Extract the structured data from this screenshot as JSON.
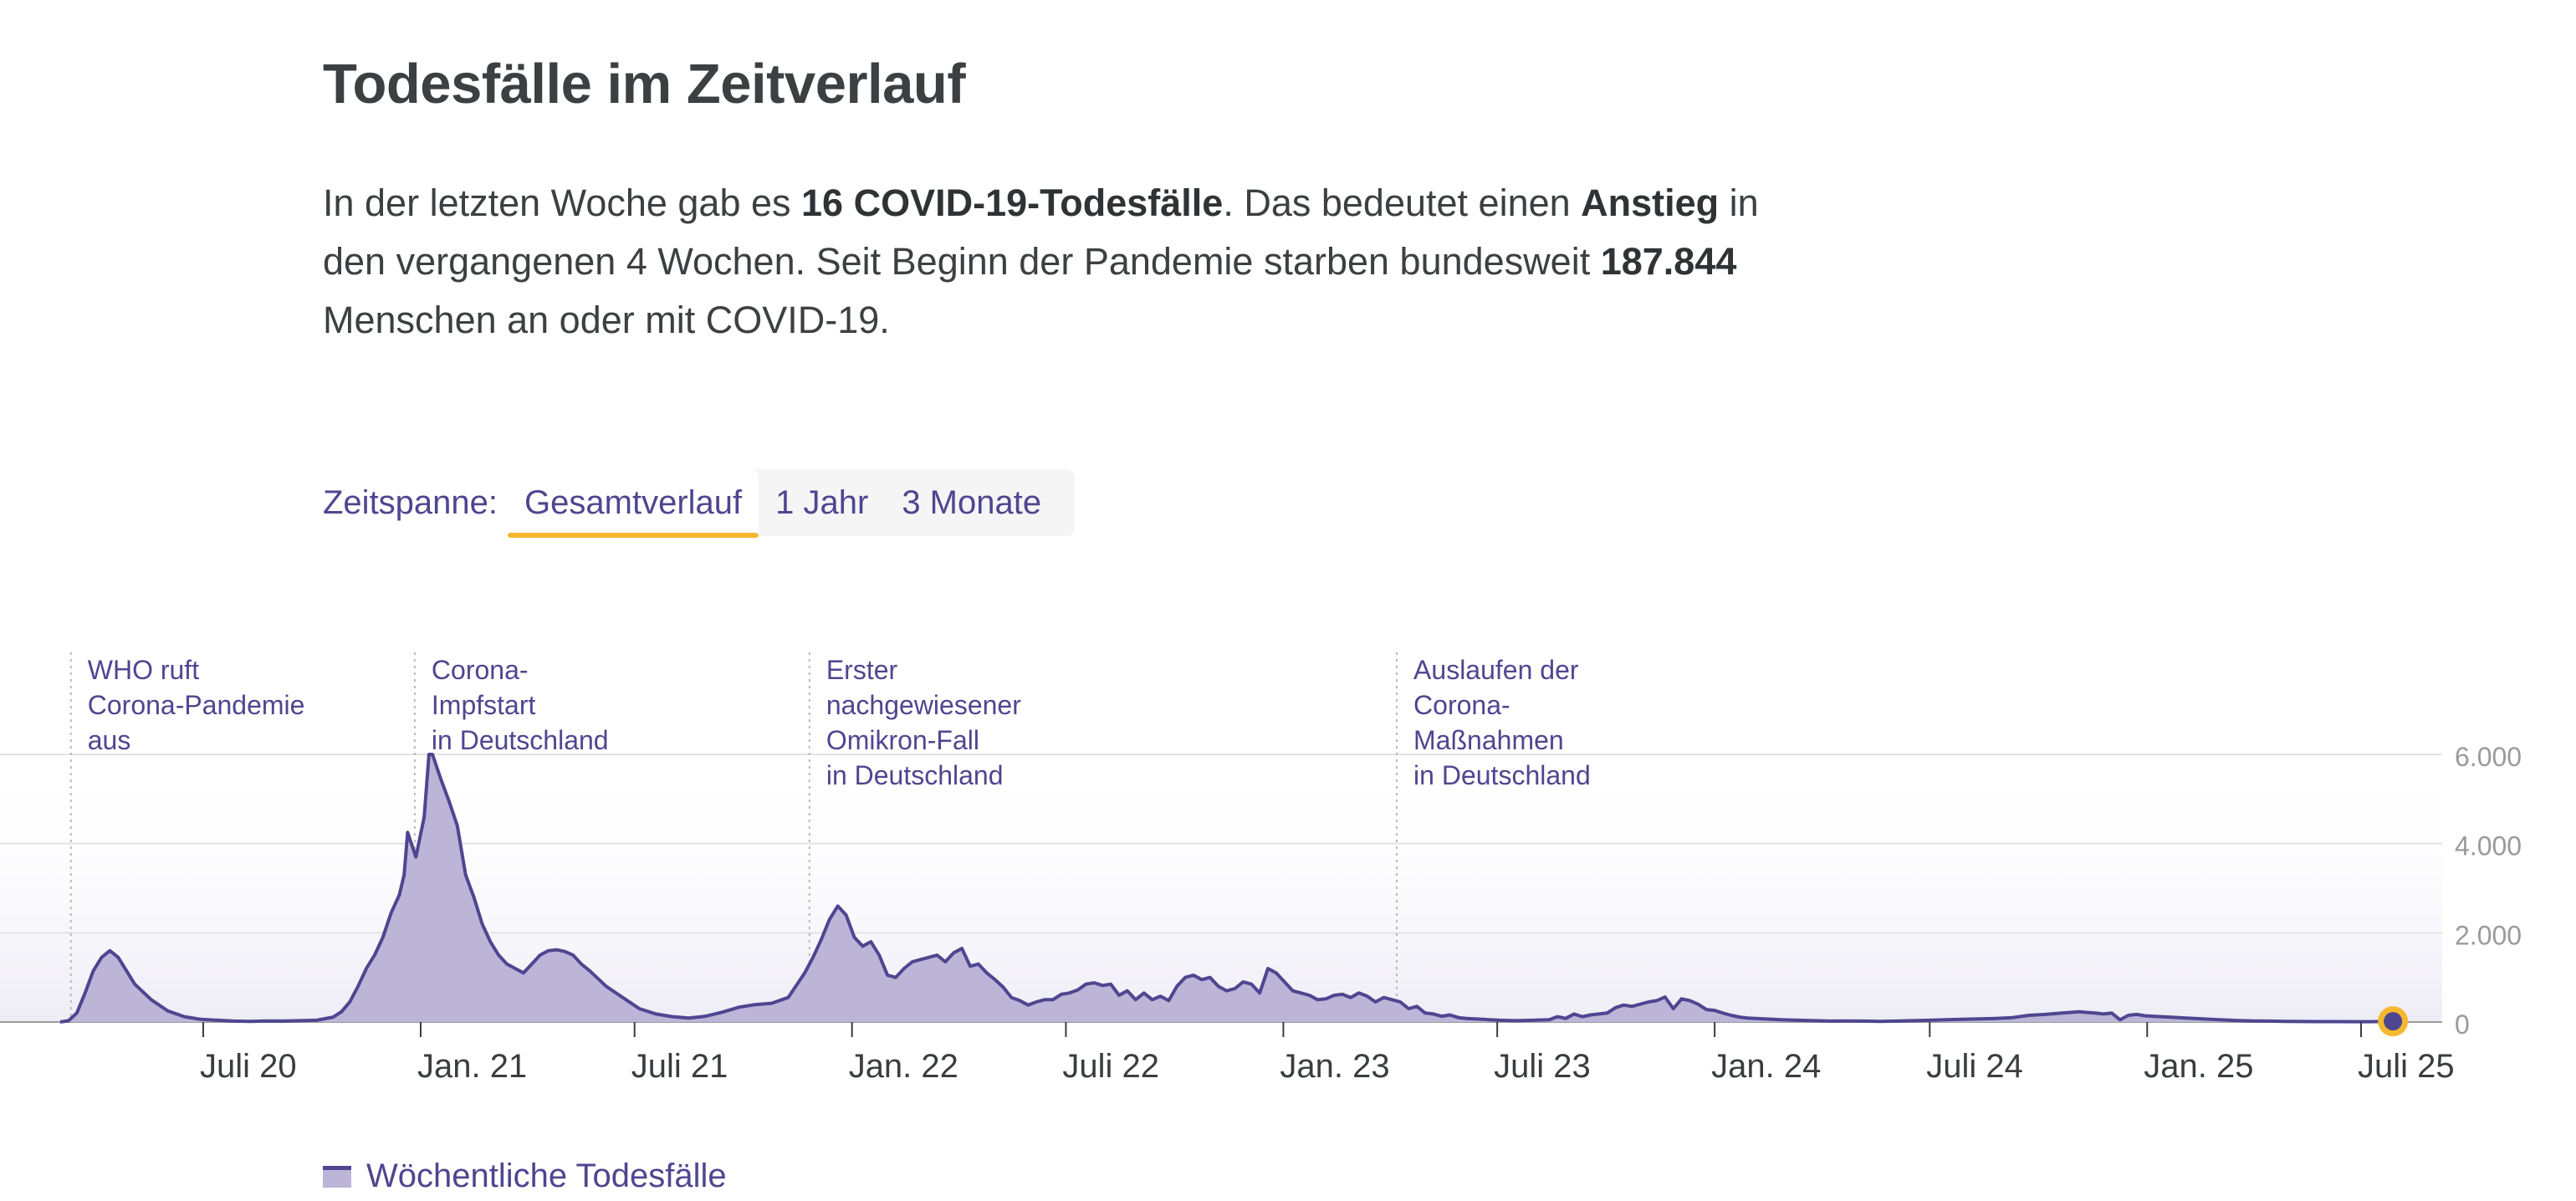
{
  "heading": {
    "title": "Todesfälle im Zeitverlauf",
    "intro_part1": "In der letzten Woche gab es ",
    "intro_bold1": "16 COVID-19-Todesfälle",
    "intro_part2": ". Das bedeutet einen ",
    "intro_bold2": "Anstieg",
    "intro_part3": " in den vergangenen 4 Wochen. Seit Beginn der Pandemie starben bundesweit ",
    "intro_bold3": "187.844",
    "intro_part4": " Menschen an oder mit COVID-19."
  },
  "zeitspanne": {
    "label": "Zeitspanne:",
    "options": [
      "Gesamtverlauf",
      "1 Jahr",
      "3 Monate"
    ],
    "selected": "Gesamtverlauf"
  },
  "legend": {
    "label": "Wöchentliche Todesfälle"
  },
  "colors": {
    "line": "#4e4690",
    "area": "#bcb5d8",
    "accent": "#f5b82e",
    "annotation_text": "#4e4690",
    "axis_text": "#3a3d3f",
    "tick_text": "#9a9a9a"
  },
  "chart_data": {
    "type": "area",
    "x_unit": "Kalenderwoche",
    "ylim": [
      0,
      6000
    ],
    "y_ticks": [
      0,
      2000,
      4000,
      6000
    ],
    "y_tick_labels": [
      "0",
      "2.000",
      "4.000",
      "6.000"
    ],
    "y_axis_position": "right",
    "grid": true,
    "x_ticks": [
      {
        "date": "2020-07-01",
        "label": "Juli 20"
      },
      {
        "date": "2021-01-01",
        "label": "Jan. 21"
      },
      {
        "date": "2021-07-01",
        "label": "Juli 21"
      },
      {
        "date": "2022-01-01",
        "label": "Jan. 22"
      },
      {
        "date": "2022-07-01",
        "label": "Juli 22"
      },
      {
        "date": "2023-01-01",
        "label": "Jan. 23"
      },
      {
        "date": "2023-07-01",
        "label": "Juli 23"
      },
      {
        "date": "2024-01-01",
        "label": "Jan. 24"
      },
      {
        "date": "2024-07-01",
        "label": "Juli 24"
      },
      {
        "date": "2025-01-01",
        "label": "Jan. 25"
      },
      {
        "date": "2025-07-01",
        "label": "Juli 25"
      }
    ],
    "annotations": [
      {
        "date": "2020-03-11",
        "text": [
          "WHO ruft",
          "Corona-Pandemie",
          "aus"
        ]
      },
      {
        "date": "2020-12-27",
        "text": [
          "Corona-",
          "Impfstart",
          "in Deutschland"
        ]
      },
      {
        "date": "2021-11-26",
        "text": [
          "Erster",
          "nachgewiesener",
          "Omikron-Fall",
          "in Deutschland"
        ]
      },
      {
        "date": "2023-04-07",
        "text": [
          "Auslaufen der",
          "Corona-",
          "Maßnahmen",
          "in Deutschland"
        ]
      }
    ],
    "last_point": {
      "date": "2025-07-28",
      "value": 16
    },
    "series": [
      {
        "name": "Wöchentliche Todesfälle",
        "points": [
          [
            "2020-03-02",
            0
          ],
          [
            "2020-03-09",
            30
          ],
          [
            "2020-03-16",
            200
          ],
          [
            "2020-03-23",
            650
          ],
          [
            "2020-03-30",
            1150
          ],
          [
            "2020-04-06",
            1450
          ],
          [
            "2020-04-13",
            1600
          ],
          [
            "2020-04-20",
            1450
          ],
          [
            "2020-04-27",
            1150
          ],
          [
            "2020-05-04",
            850
          ],
          [
            "2020-05-18",
            500
          ],
          [
            "2020-06-01",
            250
          ],
          [
            "2020-06-15",
            120
          ],
          [
            "2020-06-29",
            60
          ],
          [
            "2020-07-13",
            40
          ],
          [
            "2020-07-27",
            20
          ],
          [
            "2020-08-10",
            15
          ],
          [
            "2020-08-24",
            25
          ],
          [
            "2020-09-07",
            20
          ],
          [
            "2020-09-21",
            30
          ],
          [
            "2020-10-05",
            40
          ],
          [
            "2020-10-19",
            110
          ],
          [
            "2020-10-26",
            230
          ],
          [
            "2020-11-02",
            450
          ],
          [
            "2020-11-09",
            800
          ],
          [
            "2020-11-16",
            1200
          ],
          [
            "2020-11-23",
            1500
          ],
          [
            "2020-11-30",
            1900
          ],
          [
            "2020-12-07",
            2450
          ],
          [
            "2020-12-14",
            2850
          ],
          [
            "2020-12-18",
            3300
          ],
          [
            "2020-12-21",
            4250
          ],
          [
            "2020-12-28",
            3700
          ],
          [
            "2021-01-04",
            4600
          ],
          [
            "2021-01-08",
            6000
          ],
          [
            "2021-01-11",
            6000
          ],
          [
            "2021-01-18",
            5450
          ],
          [
            "2021-01-25",
            4950
          ],
          [
            "2021-02-01",
            4400
          ],
          [
            "2021-02-08",
            3300
          ],
          [
            "2021-02-15",
            2800
          ],
          [
            "2021-02-22",
            2200
          ],
          [
            "2021-03-01",
            1800
          ],
          [
            "2021-03-08",
            1500
          ],
          [
            "2021-03-15",
            1300
          ],
          [
            "2021-03-22",
            1200
          ],
          [
            "2021-03-29",
            1100
          ],
          [
            "2021-04-05",
            1300
          ],
          [
            "2021-04-12",
            1500
          ],
          [
            "2021-04-19",
            1600
          ],
          [
            "2021-04-26",
            1620
          ],
          [
            "2021-05-03",
            1580
          ],
          [
            "2021-05-10",
            1500
          ],
          [
            "2021-05-17",
            1300
          ],
          [
            "2021-05-24",
            1150
          ],
          [
            "2021-06-07",
            800
          ],
          [
            "2021-06-21",
            550
          ],
          [
            "2021-07-05",
            300
          ],
          [
            "2021-07-19",
            180
          ],
          [
            "2021-08-02",
            120
          ],
          [
            "2021-08-16",
            90
          ],
          [
            "2021-08-30",
            130
          ],
          [
            "2021-09-13",
            220
          ],
          [
            "2021-09-27",
            330
          ],
          [
            "2021-10-11",
            390
          ],
          [
            "2021-10-25",
            420
          ],
          [
            "2021-11-08",
            550
          ],
          [
            "2021-11-22",
            1100
          ],
          [
            "2021-11-29",
            1450
          ],
          [
            "2021-12-06",
            1850
          ],
          [
            "2021-12-13",
            2300
          ],
          [
            "2021-12-20",
            2600
          ],
          [
            "2021-12-27",
            2400
          ],
          [
            "2022-01-03",
            1900
          ],
          [
            "2022-01-10",
            1700
          ],
          [
            "2022-01-17",
            1800
          ],
          [
            "2022-01-24",
            1500
          ],
          [
            "2022-01-31",
            1050
          ],
          [
            "2022-02-07",
            1000
          ],
          [
            "2022-02-14",
            1200
          ],
          [
            "2022-02-21",
            1350
          ],
          [
            "2022-02-28",
            1400
          ],
          [
            "2022-03-07",
            1450
          ],
          [
            "2022-03-14",
            1500
          ],
          [
            "2022-03-21",
            1350
          ],
          [
            "2022-03-28",
            1550
          ],
          [
            "2022-04-04",
            1650
          ],
          [
            "2022-04-11",
            1250
          ],
          [
            "2022-04-18",
            1300
          ],
          [
            "2022-04-25",
            1100
          ],
          [
            "2022-05-02",
            950
          ],
          [
            "2022-05-09",
            780
          ],
          [
            "2022-05-16",
            550
          ],
          [
            "2022-05-23",
            480
          ],
          [
            "2022-05-30",
            380
          ],
          [
            "2022-06-06",
            450
          ],
          [
            "2022-06-13",
            500
          ],
          [
            "2022-06-20",
            500
          ],
          [
            "2022-06-27",
            620
          ],
          [
            "2022-07-04",
            650
          ],
          [
            "2022-07-11",
            720
          ],
          [
            "2022-07-18",
            850
          ],
          [
            "2022-07-25",
            880
          ],
          [
            "2022-08-01",
            820
          ],
          [
            "2022-08-08",
            850
          ],
          [
            "2022-08-15",
            600
          ],
          [
            "2022-08-22",
            700
          ],
          [
            "2022-08-29",
            500
          ],
          [
            "2022-09-05",
            650
          ],
          [
            "2022-09-12",
            500
          ],
          [
            "2022-09-19",
            580
          ],
          [
            "2022-09-26",
            480
          ],
          [
            "2022-10-03",
            800
          ],
          [
            "2022-10-10",
            1000
          ],
          [
            "2022-10-17",
            1050
          ],
          [
            "2022-10-24",
            950
          ],
          [
            "2022-10-31",
            1000
          ],
          [
            "2022-11-07",
            800
          ],
          [
            "2022-11-14",
            700
          ],
          [
            "2022-11-21",
            750
          ],
          [
            "2022-11-28",
            900
          ],
          [
            "2022-12-05",
            850
          ],
          [
            "2022-12-12",
            650
          ],
          [
            "2022-12-19",
            1200
          ],
          [
            "2022-12-26",
            1100
          ],
          [
            "2023-01-02",
            900
          ],
          [
            "2023-01-09",
            700
          ],
          [
            "2023-01-16",
            650
          ],
          [
            "2023-01-23",
            600
          ],
          [
            "2023-01-30",
            500
          ],
          [
            "2023-02-06",
            520
          ],
          [
            "2023-02-13",
            600
          ],
          [
            "2023-02-20",
            620
          ],
          [
            "2023-02-27",
            550
          ],
          [
            "2023-03-06",
            650
          ],
          [
            "2023-03-13",
            580
          ],
          [
            "2023-03-20",
            450
          ],
          [
            "2023-03-27",
            550
          ],
          [
            "2023-04-03",
            500
          ],
          [
            "2023-04-10",
            450
          ],
          [
            "2023-04-17",
            300
          ],
          [
            "2023-04-24",
            350
          ],
          [
            "2023-05-01",
            200
          ],
          [
            "2023-05-08",
            180
          ],
          [
            "2023-05-15",
            130
          ],
          [
            "2023-05-22",
            160
          ],
          [
            "2023-05-29",
            100
          ],
          [
            "2023-06-05",
            80
          ],
          [
            "2023-06-19",
            60
          ],
          [
            "2023-07-03",
            40
          ],
          [
            "2023-07-17",
            30
          ],
          [
            "2023-07-31",
            40
          ],
          [
            "2023-08-14",
            50
          ],
          [
            "2023-08-21",
            120
          ],
          [
            "2023-08-28",
            80
          ],
          [
            "2023-09-04",
            180
          ],
          [
            "2023-09-11",
            120
          ],
          [
            "2023-09-18",
            160
          ],
          [
            "2023-10-02",
            200
          ],
          [
            "2023-10-09",
            320
          ],
          [
            "2023-10-16",
            380
          ],
          [
            "2023-10-23",
            350
          ],
          [
            "2023-10-30",
            400
          ],
          [
            "2023-11-06",
            450
          ],
          [
            "2023-11-13",
            480
          ],
          [
            "2023-11-20",
            560
          ],
          [
            "2023-11-27",
            300
          ],
          [
            "2023-12-04",
            520
          ],
          [
            "2023-12-11",
            480
          ],
          [
            "2023-12-18",
            400
          ],
          [
            "2023-12-25",
            280
          ],
          [
            "2024-01-01",
            260
          ],
          [
            "2024-01-08",
            200
          ],
          [
            "2024-01-15",
            150
          ],
          [
            "2024-01-22",
            110
          ],
          [
            "2024-01-29",
            90
          ],
          [
            "2024-02-12",
            70
          ],
          [
            "2024-02-26",
            50
          ],
          [
            "2024-03-11",
            40
          ],
          [
            "2024-03-25",
            30
          ],
          [
            "2024-04-08",
            20
          ],
          [
            "2024-04-22",
            25
          ],
          [
            "2024-05-06",
            20
          ],
          [
            "2024-05-20",
            15
          ],
          [
            "2024-06-03",
            20
          ],
          [
            "2024-06-17",
            30
          ],
          [
            "2024-07-01",
            40
          ],
          [
            "2024-07-15",
            50
          ],
          [
            "2024-07-29",
            60
          ],
          [
            "2024-08-12",
            70
          ],
          [
            "2024-08-26",
            80
          ],
          [
            "2024-09-09",
            100
          ],
          [
            "2024-09-23",
            150
          ],
          [
            "2024-10-07",
            170
          ],
          [
            "2024-10-21",
            200
          ],
          [
            "2024-11-04",
            230
          ],
          [
            "2024-11-18",
            200
          ],
          [
            "2024-11-25",
            180
          ],
          [
            "2024-12-02",
            200
          ],
          [
            "2024-12-09",
            50
          ],
          [
            "2024-12-16",
            150
          ],
          [
            "2024-12-23",
            170
          ],
          [
            "2024-12-30",
            140
          ],
          [
            "2025-01-06",
            130
          ],
          [
            "2025-01-20",
            110
          ],
          [
            "2025-02-03",
            90
          ],
          [
            "2025-02-17",
            70
          ],
          [
            "2025-03-03",
            50
          ],
          [
            "2025-03-17",
            35
          ],
          [
            "2025-03-31",
            25
          ],
          [
            "2025-04-14",
            20
          ],
          [
            "2025-04-28",
            15
          ],
          [
            "2025-05-12",
            12
          ],
          [
            "2025-05-26",
            10
          ],
          [
            "2025-06-09",
            10
          ],
          [
            "2025-06-23",
            8
          ],
          [
            "2025-07-07",
            8
          ],
          [
            "2025-07-14",
            10
          ],
          [
            "2025-07-21",
            12
          ],
          [
            "2025-07-28",
            16
          ]
        ]
      }
    ]
  }
}
